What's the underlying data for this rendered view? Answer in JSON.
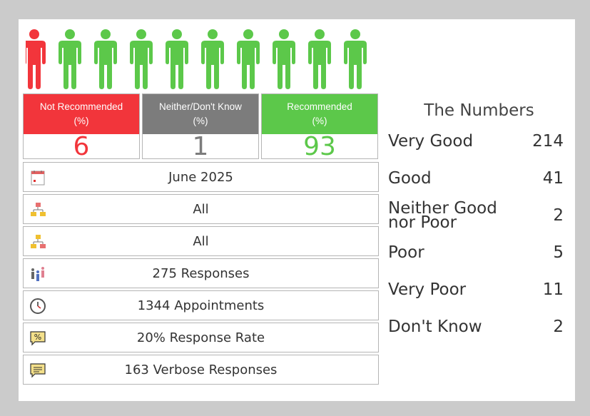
{
  "recommendation": {
    "people": {
      "total_icons": 10,
      "red_icons": 1
    },
    "not_recommended": {
      "label_line1": "Not Recommended",
      "label_line2": "(%)",
      "value": "6",
      "color": "#f2353b"
    },
    "neither": {
      "label_line1": "Neither/Don't Know",
      "label_line2": "(%)",
      "value": "1",
      "color": "#7c7c7c"
    },
    "recommended": {
      "label_line1": "Recommended",
      "label_line2": "(%)",
      "value": "93",
      "color": "#5cc84a"
    }
  },
  "info_rows": [
    {
      "icon": "calendar-icon",
      "text": "June 2025"
    },
    {
      "icon": "org-chart-icon",
      "text": "All"
    },
    {
      "icon": "org-chart-alt-icon",
      "text": "All"
    },
    {
      "icon": "people-group-icon",
      "text": "275 Responses"
    },
    {
      "icon": "clock-icon",
      "text": "1344 Appointments"
    },
    {
      "icon": "percent-speech-icon",
      "text": "20% Response Rate"
    },
    {
      "icon": "comment-icon",
      "text": "163 Verbose Responses"
    }
  ],
  "numbers": {
    "title": "The Numbers",
    "rows": [
      {
        "label": "Very Good",
        "value": "214"
      },
      {
        "label": "Good",
        "value": "41"
      },
      {
        "label_line1": "Neither Good",
        "label_line2": "nor Poor",
        "value": "2"
      },
      {
        "label": "Poor",
        "value": "5"
      },
      {
        "label": "Very Poor",
        "value": "11"
      },
      {
        "label": "Don't Know",
        "value": "2"
      }
    ]
  }
}
